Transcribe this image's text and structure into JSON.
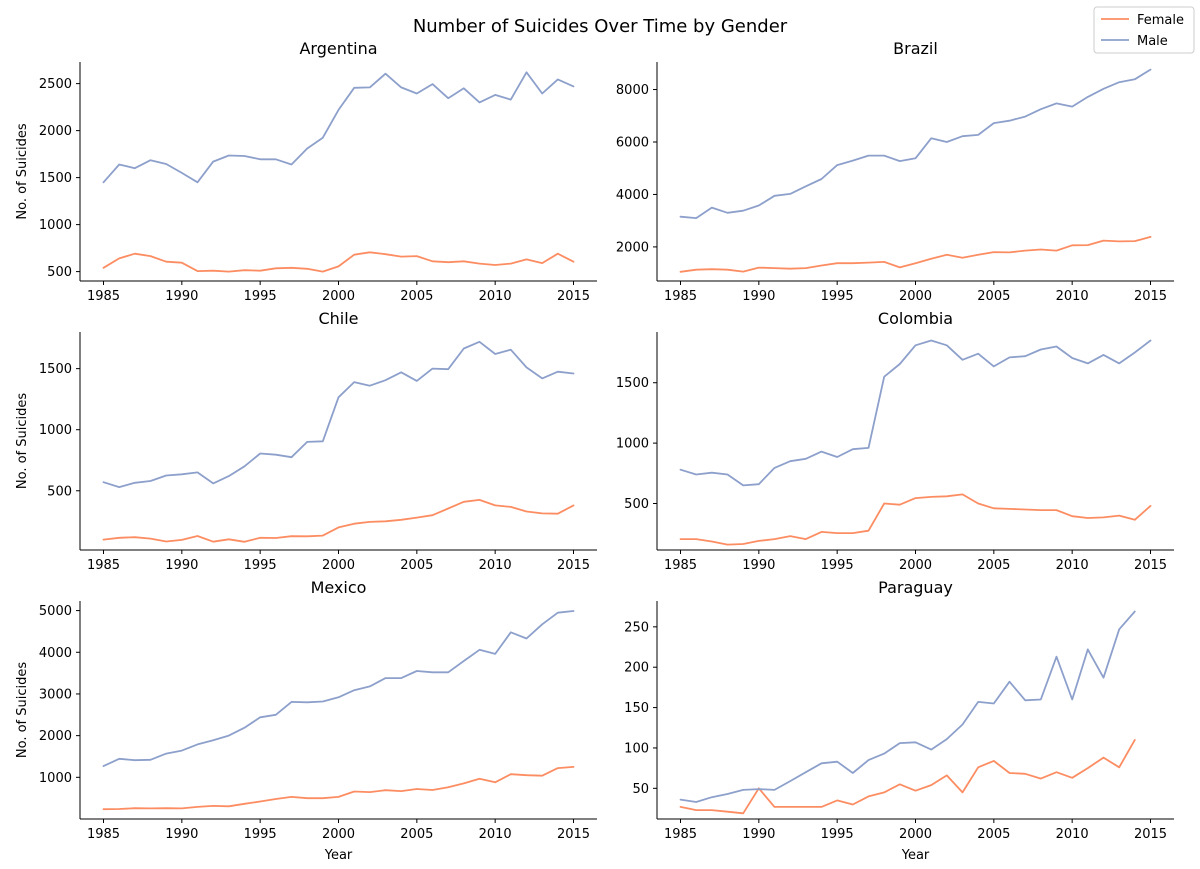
{
  "figure": {
    "title": "Number of Suicides Over Time by Gender",
    "legend": {
      "placement": "top-right",
      "entries": [
        {
          "label": "Female",
          "color": "#fc8d62"
        },
        {
          "label": "Male",
          "color": "#8da0cb"
        }
      ]
    }
  },
  "chart_data": [
    {
      "type": "line",
      "title": "Argentina",
      "xlabel": "",
      "ylabel": "No. of Suicides",
      "xlim": [
        1983.5,
        2016.5
      ],
      "ylim": [
        400,
        2730
      ],
      "xticks": [
        1985,
        1990,
        1995,
        2000,
        2005,
        2010,
        2015
      ],
      "yticks": [
        500,
        1000,
        1500,
        2000,
        2500
      ],
      "x": [
        1985,
        1986,
        1987,
        1988,
        1989,
        1990,
        1991,
        1992,
        1993,
        1994,
        1995,
        1996,
        1997,
        1998,
        1999,
        2000,
        2001,
        2002,
        2003,
        2004,
        2005,
        2006,
        2007,
        2008,
        2009,
        2010,
        2011,
        2012,
        2013,
        2014,
        2015
      ],
      "series": [
        {
          "name": "Female",
          "color": "#fc8d62",
          "values": [
            540,
            640,
            690,
            665,
            605,
            595,
            505,
            510,
            500,
            515,
            510,
            535,
            540,
            530,
            500,
            555,
            680,
            705,
            685,
            660,
            665,
            610,
            600,
            610,
            585,
            570,
            585,
            630,
            590,
            690,
            605
          ]
        },
        {
          "name": "Male",
          "color": "#8da0cb",
          "values": [
            1450,
            1640,
            1600,
            1685,
            1645,
            1550,
            1450,
            1670,
            1735,
            1730,
            1695,
            1695,
            1640,
            1810,
            1925,
            2220,
            2455,
            2460,
            2605,
            2460,
            2395,
            2495,
            2345,
            2450,
            2300,
            2380,
            2330,
            2620,
            2395,
            2545,
            2470
          ]
        }
      ]
    },
    {
      "type": "line",
      "title": "Brazil",
      "xlabel": "",
      "ylabel": "",
      "xlim": [
        1983.5,
        2016.5
      ],
      "ylim": [
        700,
        9050
      ],
      "xticks": [
        1985,
        1990,
        1995,
        2000,
        2005,
        2010,
        2015
      ],
      "yticks": [
        2000,
        4000,
        6000,
        8000
      ],
      "x": [
        1985,
        1986,
        1987,
        1988,
        1989,
        1990,
        1991,
        1992,
        1993,
        1994,
        1995,
        1996,
        1997,
        1998,
        1999,
        2000,
        2001,
        2002,
        2003,
        2004,
        2005,
        2006,
        2007,
        2008,
        2009,
        2010,
        2011,
        2012,
        2013,
        2014,
        2015
      ],
      "series": [
        {
          "name": "Female",
          "color": "#fc8d62",
          "values": [
            1050,
            1130,
            1150,
            1130,
            1060,
            1210,
            1190,
            1170,
            1190,
            1290,
            1380,
            1380,
            1400,
            1430,
            1220,
            1380,
            1550,
            1700,
            1590,
            1700,
            1800,
            1790,
            1860,
            1900,
            1860,
            2060,
            2070,
            2240,
            2210,
            2220,
            2380
          ]
        },
        {
          "name": "Male",
          "color": "#8da0cb",
          "values": [
            3150,
            3100,
            3500,
            3300,
            3380,
            3580,
            3950,
            4020,
            4310,
            4590,
            5120,
            5290,
            5480,
            5480,
            5270,
            5380,
            6140,
            6000,
            6220,
            6270,
            6720,
            6810,
            6970,
            7250,
            7470,
            7350,
            7720,
            8030,
            8280,
            8390,
            8760
          ]
        }
      ]
    },
    {
      "type": "line",
      "title": "Chile",
      "xlabel": "",
      "ylabel": "No. of Suicides",
      "xlim": [
        1983.5,
        2016.5
      ],
      "ylim": [
        15,
        1800
      ],
      "xticks": [
        1985,
        1990,
        1995,
        2000,
        2005,
        2010,
        2015
      ],
      "yticks": [
        500,
        1000,
        1500
      ],
      "x": [
        1985,
        1986,
        1987,
        1988,
        1989,
        1990,
        1991,
        1992,
        1993,
        1994,
        1995,
        1996,
        1997,
        1998,
        1999,
        2000,
        2001,
        2002,
        2003,
        2004,
        2005,
        2006,
        2007,
        2008,
        2009,
        2010,
        2011,
        2012,
        2013,
        2014,
        2015
      ],
      "series": [
        {
          "name": "Female",
          "color": "#fc8d62",
          "values": [
            100,
            115,
            120,
            108,
            85,
            98,
            130,
            83,
            103,
            82,
            115,
            113,
            128,
            127,
            133,
            200,
            230,
            245,
            250,
            262,
            280,
            300,
            355,
            410,
            425,
            380,
            368,
            330,
            315,
            312,
            380
          ]
        },
        {
          "name": "Male",
          "color": "#8da0cb",
          "values": [
            570,
            530,
            565,
            580,
            625,
            635,
            650,
            560,
            620,
            700,
            805,
            795,
            775,
            900,
            905,
            1265,
            1390,
            1360,
            1405,
            1470,
            1400,
            1500,
            1495,
            1665,
            1720,
            1620,
            1655,
            1510,
            1420,
            1475,
            1460
          ]
        }
      ]
    },
    {
      "type": "line",
      "title": "Colombia",
      "xlabel": "",
      "ylabel": "",
      "xlim": [
        1983.5,
        2016.5
      ],
      "ylim": [
        115,
        1920
      ],
      "xticks": [
        1985,
        1990,
        1995,
        2000,
        2005,
        2010,
        2015
      ],
      "yticks": [
        500,
        1000,
        1500
      ],
      "x": [
        1985,
        1986,
        1987,
        1988,
        1989,
        1990,
        1991,
        1992,
        1993,
        1994,
        1995,
        1996,
        1997,
        1998,
        1999,
        2000,
        2001,
        2002,
        2003,
        2004,
        2005,
        2006,
        2007,
        2008,
        2009,
        2010,
        2011,
        2012,
        2013,
        2014,
        2015
      ],
      "series": [
        {
          "name": "Female",
          "color": "#fc8d62",
          "values": [
            205,
            205,
            185,
            160,
            165,
            190,
            205,
            230,
            205,
            265,
            255,
            255,
            275,
            500,
            490,
            545,
            555,
            560,
            575,
            500,
            460,
            455,
            450,
            445,
            445,
            395,
            380,
            385,
            400,
            365,
            480
          ]
        },
        {
          "name": "Male",
          "color": "#8da0cb",
          "values": [
            780,
            740,
            755,
            740,
            650,
            660,
            795,
            850,
            870,
            930,
            885,
            950,
            960,
            1550,
            1655,
            1810,
            1850,
            1810,
            1690,
            1740,
            1635,
            1710,
            1720,
            1775,
            1800,
            1705,
            1660,
            1730,
            1660,
            1750,
            1850
          ]
        }
      ]
    },
    {
      "type": "line",
      "title": "Mexico",
      "xlabel": "Year",
      "ylabel": "No. of Suicides",
      "xlim": [
        1983.5,
        2016.5
      ],
      "ylim": [
        0,
        5230
      ],
      "xticks": [
        1985,
        1990,
        1995,
        2000,
        2005,
        2010,
        2015
      ],
      "yticks": [
        1000,
        2000,
        3000,
        4000,
        5000
      ],
      "x": [
        1985,
        1986,
        1987,
        1988,
        1989,
        1990,
        1991,
        1992,
        1993,
        1994,
        1995,
        1996,
        1997,
        1998,
        1999,
        2000,
        2001,
        2002,
        2003,
        2004,
        2005,
        2006,
        2007,
        2008,
        2009,
        2010,
        2011,
        2012,
        2013,
        2014,
        2015
      ],
      "series": [
        {
          "name": "Female",
          "color": "#fc8d62",
          "values": [
            235,
            240,
            260,
            255,
            260,
            255,
            290,
            315,
            305,
            365,
            420,
            480,
            530,
            500,
            500,
            530,
            660,
            645,
            690,
            670,
            720,
            695,
            760,
            855,
            965,
            880,
            1075,
            1050,
            1040,
            1220,
            1250
          ]
        },
        {
          "name": "Male",
          "color": "#8da0cb",
          "values": [
            1270,
            1445,
            1410,
            1420,
            1570,
            1640,
            1790,
            1890,
            2000,
            2190,
            2440,
            2500,
            2810,
            2800,
            2820,
            2920,
            3090,
            3180,
            3380,
            3380,
            3550,
            3520,
            3520,
            3790,
            4060,
            3960,
            4480,
            4330,
            4670,
            4950,
            4990
          ]
        }
      ]
    },
    {
      "type": "line",
      "title": "Paraguay",
      "xlabel": "Year",
      "ylabel": "",
      "xlim": [
        1983.5,
        2016.5
      ],
      "ylim": [
        12,
        282
      ],
      "xticks": [
        1985,
        1990,
        1995,
        2000,
        2005,
        2010,
        2015
      ],
      "yticks": [
        50,
        100,
        150,
        200,
        250
      ],
      "x": [
        1985,
        1986,
        1987,
        1988,
        1989,
        1990,
        1991,
        1992,
        1993,
        1994,
        1995,
        1996,
        1997,
        1998,
        1999,
        2000,
        2001,
        2002,
        2003,
        2004,
        2005,
        2006,
        2007,
        2008,
        2009,
        2010,
        2011,
        2012,
        2013,
        2014
      ],
      "series": [
        {
          "name": "Female",
          "color": "#fc8d62",
          "values": [
            27,
            23,
            23,
            21,
            19,
            50,
            27,
            27,
            27,
            27,
            35,
            30,
            40,
            45,
            55,
            47,
            54,
            66,
            45,
            76,
            84,
            69,
            68,
            62,
            70,
            63,
            75,
            88,
            76,
            110
          ]
        },
        {
          "name": "Male",
          "color": "#8da0cb",
          "values": [
            36,
            33,
            39,
            43,
            48,
            49,
            48,
            59,
            70,
            81,
            83,
            69,
            85,
            93,
            106,
            107,
            98,
            111,
            129,
            157,
            155,
            182,
            159,
            160,
            213,
            160,
            222,
            187,
            247,
            269
          ]
        }
      ]
    }
  ]
}
